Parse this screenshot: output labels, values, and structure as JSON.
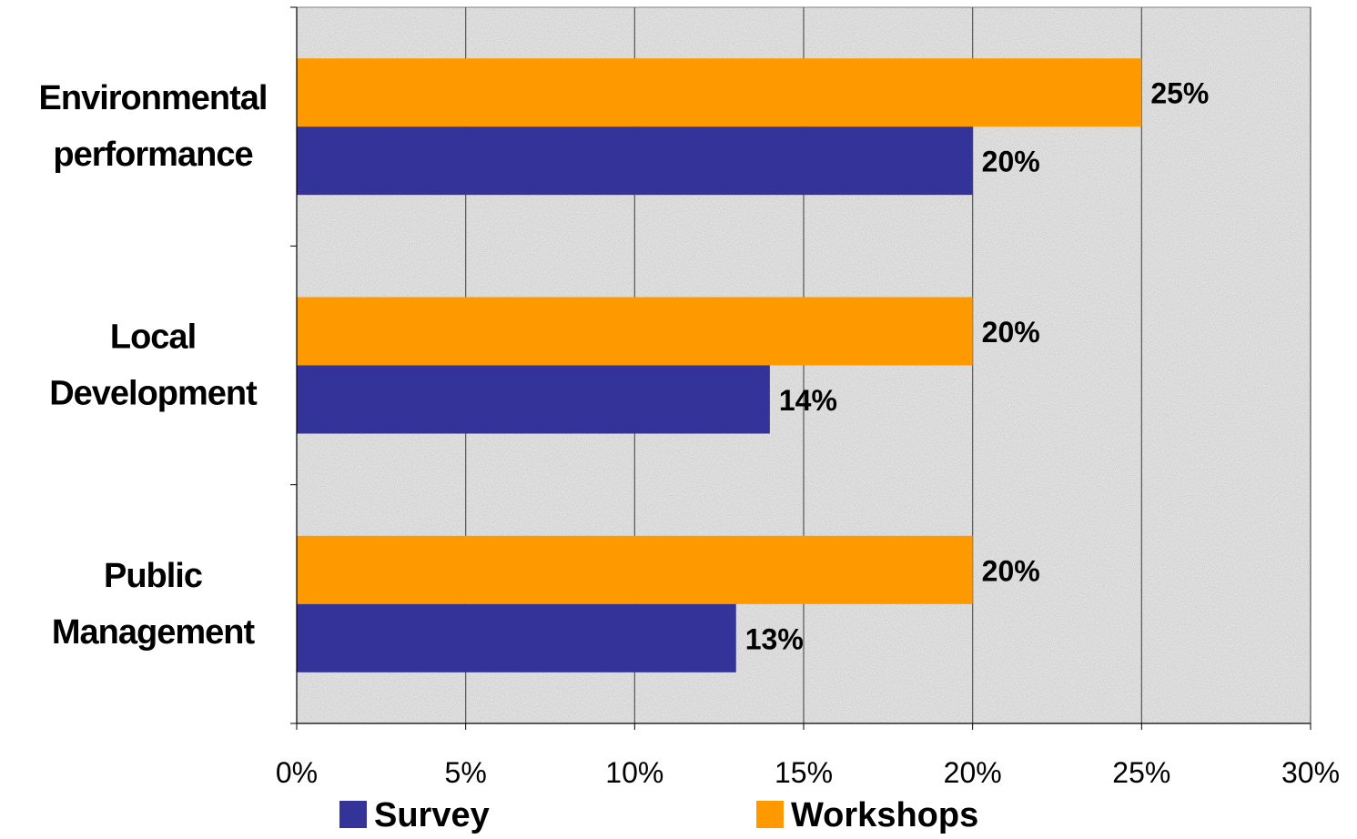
{
  "chart_data": {
    "type": "bar",
    "orientation": "horizontal",
    "categories": [
      [
        "Environmental",
        "performance"
      ],
      [
        "Local",
        "Development"
      ],
      [
        "Public",
        "Management"
      ]
    ],
    "series": [
      {
        "name": "Survey",
        "color": "#333399",
        "values": [
          20,
          14,
          13
        ],
        "labels": [
          "20%",
          "14%",
          "13%"
        ]
      },
      {
        "name": "Workshops",
        "color": "#FF9900",
        "values": [
          25,
          20,
          20
        ],
        "labels": [
          "25%",
          "20%",
          "20%"
        ]
      }
    ],
    "x_ticks": [
      "0%",
      "5%",
      "10%",
      "15%",
      "20%",
      "25%",
      "30%"
    ],
    "xlim": [
      0,
      30
    ],
    "grid": true,
    "plot_background": "textured light gray",
    "legend": {
      "position": "bottom",
      "entries": [
        "Survey",
        "Workshops"
      ]
    }
  }
}
